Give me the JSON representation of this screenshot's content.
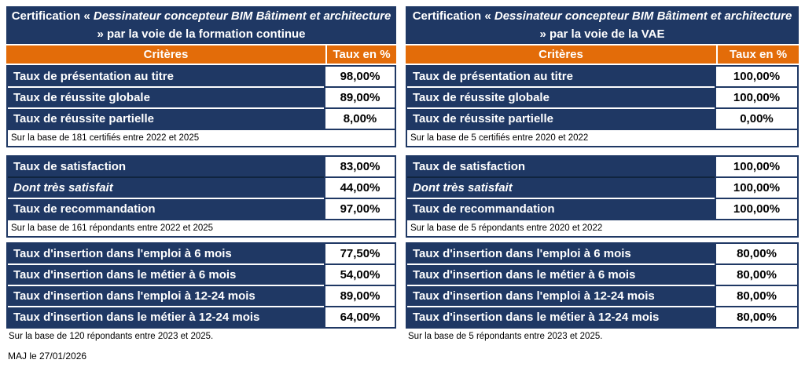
{
  "page": {
    "maj_label": "MAJ le 27/01/2026"
  },
  "colors": {
    "navy": "#1F3864",
    "orange": "#E36C09",
    "row_text": "#FFFFFF",
    "value_text": "#000000"
  },
  "tables": [
    {
      "id": "formation-continue",
      "title": {
        "prefix": "Certification « ",
        "italic": "Dessinateur concepteur BIM Bâtiment et architecture",
        "suffix": " » par la voie de la formation continue"
      },
      "header": {
        "criteria": "Critères",
        "rate": "Taux en %"
      },
      "sections": [
        {
          "rows": [
            {
              "label": "Taux de présentation au titre",
              "value": "98,00%"
            },
            {
              "label": "Taux de réussite globale",
              "value": "89,00%"
            },
            {
              "label": "Taux de réussite partielle",
              "value": "8,00%"
            }
          ],
          "note": "Sur la base de 181 certifiés entre 2022 et 2025"
        },
        {
          "rows": [
            {
              "label": "Taux de satisfaction",
              "value": "83,00%"
            },
            {
              "label": "Dont très satisfait",
              "value": "44,00%",
              "italic": true
            },
            {
              "label": "Taux de recommandation",
              "value": "97,00%"
            }
          ],
          "note": "Sur la base de 161 répondants entre 2022 et 2025"
        },
        {
          "rows": [
            {
              "label": "Taux d'insertion dans l'emploi à 6 mois",
              "value": "77,50%"
            },
            {
              "label": "Taux d'insertion dans le métier à 6 mois",
              "value": "54,00%"
            },
            {
              "label": "Taux d'insertion dans l'emploi à 12-24 mois",
              "value": "89,00%"
            },
            {
              "label": "Taux d'insertion dans le métier à 12-24 mois",
              "value": "64,00%"
            }
          ]
        }
      ],
      "footnote": "Sur la base de 120 répondants entre 2023 et 2025."
    },
    {
      "id": "vae",
      "title": {
        "prefix": "Certification « ",
        "italic": "Dessinateur concepteur BIM Bâtiment et architecture",
        "suffix": " » par la voie de la VAE"
      },
      "header": {
        "criteria": "Critères",
        "rate": "Taux en %"
      },
      "sections": [
        {
          "rows": [
            {
              "label": "Taux de présentation au titre",
              "value": "100,00%"
            },
            {
              "label": "Taux de réussite globale",
              "value": "100,00%"
            },
            {
              "label": "Taux de réussite partielle",
              "value": "0,00%"
            }
          ],
          "note": "Sur la base de 5 certifiés entre 2020 et 2022"
        },
        {
          "rows": [
            {
              "label": "Taux de satisfaction",
              "value": "100,00%"
            },
            {
              "label": "Dont très satisfait",
              "value": "100,00%",
              "italic": true
            },
            {
              "label": "Taux de recommandation",
              "value": "100,00%"
            }
          ],
          "note": "Sur la base de 5 répondants entre 2020 et 2022"
        },
        {
          "rows": [
            {
              "label": "Taux d'insertion dans l'emploi à 6 mois",
              "value": "80,00%"
            },
            {
              "label": "Taux d'insertion dans le métier à 6 mois",
              "value": "80,00%"
            },
            {
              "label": "Taux d'insertion dans l'emploi à 12-24 mois",
              "value": "80,00%"
            },
            {
              "label": "Taux d'insertion dans le métier à 12-24 mois",
              "value": "80,00%"
            }
          ]
        }
      ],
      "footnote": "Sur la base de 5 répondants entre 2023 et 2025."
    }
  ]
}
